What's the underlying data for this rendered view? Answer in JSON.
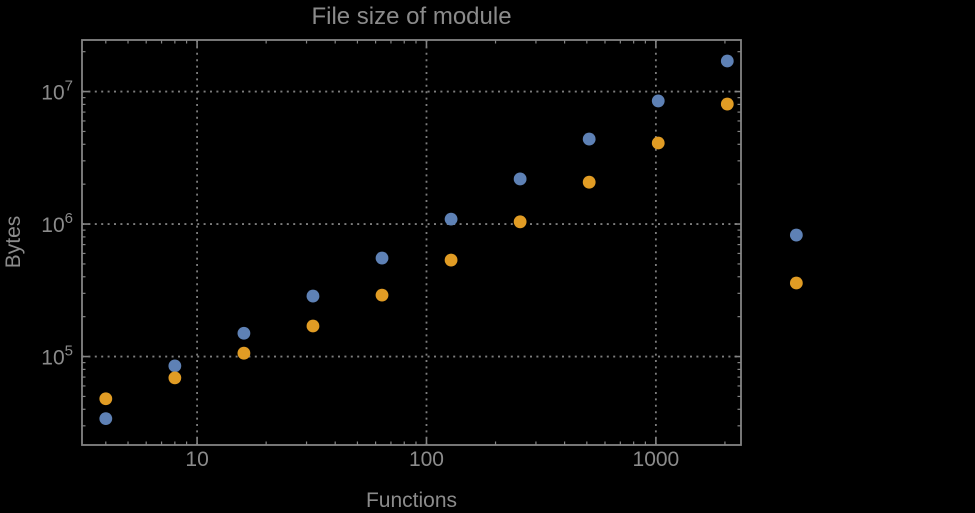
{
  "chart_data": {
    "type": "scatter",
    "title": "File size of module",
    "xlabel": "Functions",
    "ylabel": "Bytes",
    "x_scale": "log",
    "y_scale": "log",
    "grid": true,
    "legend": "none",
    "x_axis": {
      "min": 3.15,
      "max": 2350,
      "major_ticks": [
        10,
        100,
        1000
      ],
      "tick_labels": [
        "10",
        "100",
        "1000"
      ]
    },
    "y_axis": {
      "min": 21500,
      "max": 24500000,
      "major_ticks": [
        100000,
        1000000,
        10000000
      ],
      "tick_labels": [
        {
          "base": "10",
          "exp": "5"
        },
        {
          "base": "10",
          "exp": "6"
        },
        {
          "base": "10",
          "exp": "7"
        }
      ]
    },
    "x": [
      4,
      8,
      16,
      32,
      64,
      128,
      256,
      512,
      1024,
      2048,
      4096
    ],
    "series": [
      {
        "name": "blue",
        "color": "#5e81b5",
        "values": [
          34000,
          85000,
          150000,
          286000,
          554000,
          1090000,
          2190000,
          4380000,
          8500000,
          17000000,
          826000
        ]
      },
      {
        "name": "orange",
        "color": "#e19c24",
        "values": [
          48000,
          69000,
          106000,
          170000,
          291000,
          535000,
          1040000,
          2070000,
          4090000,
          8050000,
          359000
        ]
      }
    ],
    "marker": {
      "shape": "circle",
      "radius": 6.4
    },
    "colors": {
      "background": "#000000",
      "text": "#8b8b8b",
      "frame": "#848484",
      "grid": "#7d7d7d"
    }
  }
}
